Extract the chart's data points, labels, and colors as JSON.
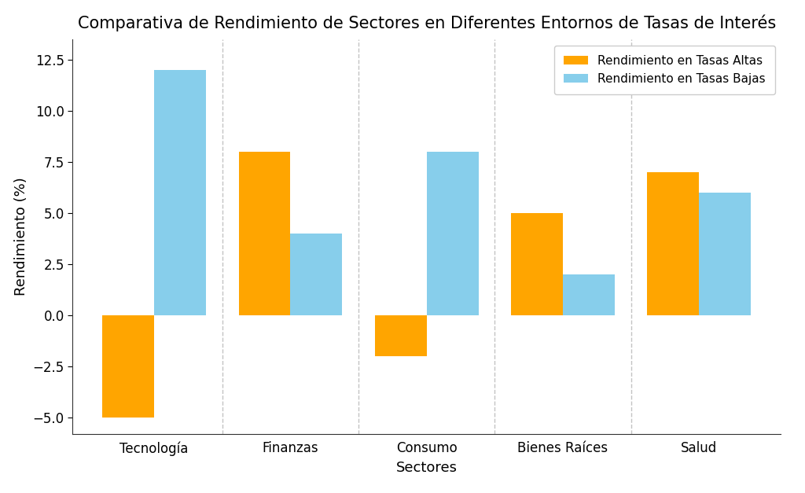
{
  "title": "Comparativa de Rendimiento de Sectores en Diferentes Entornos de Tasas de Interés",
  "xlabel": "Sectores",
  "ylabel": "Rendimiento (%)",
  "categories": [
    "Tecnología",
    "Finanzas",
    "Consumo",
    "Bienes Raíces",
    "Salud"
  ],
  "series": [
    {
      "label": "Rendimiento en Tasas Altas",
      "values": [
        -5.0,
        8.0,
        -2.0,
        5.0,
        7.0
      ],
      "color": "#FFA500"
    },
    {
      "label": "Rendimiento en Tasas Bajas",
      "values": [
        12.0,
        4.0,
        8.0,
        2.0,
        6.0
      ],
      "color": "#87CEEB"
    }
  ],
  "ylim": [
    -5.8,
    13.5
  ],
  "bar_width": 0.38,
  "background_color": "#ffffff",
  "title_fontsize": 15,
  "label_fontsize": 13,
  "tick_fontsize": 12,
  "legend_fontsize": 11,
  "grid_color": "#aaaaaa",
  "grid_linestyle": "--",
  "grid_alpha": 0.7
}
